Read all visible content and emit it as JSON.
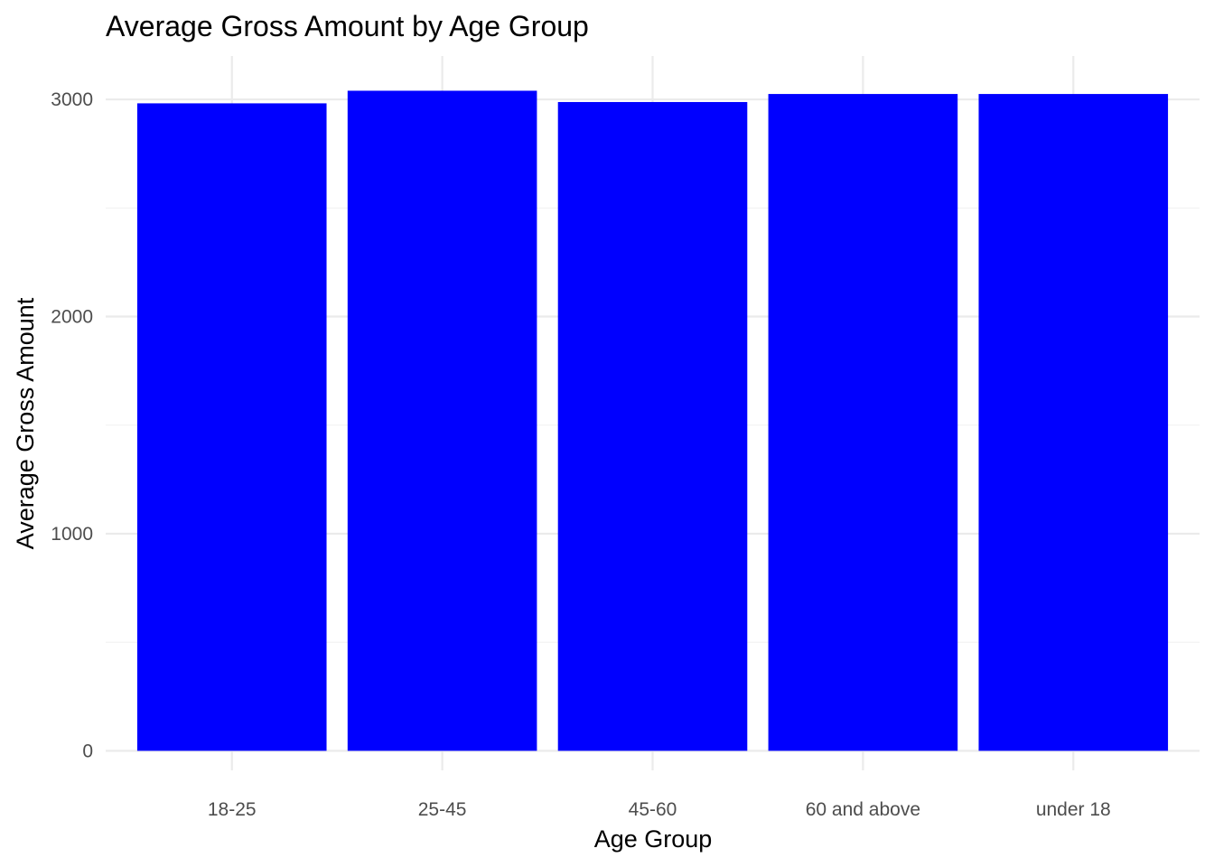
{
  "chart_data": {
    "type": "bar",
    "title": "Average Gross Amount by Age Group",
    "xlabel": "Age Group",
    "ylabel": "Average Gross Amount",
    "categories": [
      "18-25",
      "25-45",
      "45-60",
      "60 and above",
      "under 18"
    ],
    "values": [
      2982,
      3040,
      2988,
      3025,
      3025
    ],
    "ylim": [
      -90,
      3200
    ],
    "yticks": [
      0,
      1000,
      2000,
      3000
    ],
    "yticks_minor": [
      500,
      1500,
      2500
    ],
    "grid": true,
    "legend": "none",
    "bar_color": "#0000ff"
  }
}
